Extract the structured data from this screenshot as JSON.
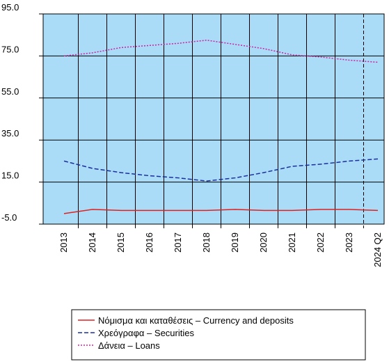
{
  "chart_data": {
    "type": "line",
    "categories": [
      "2013",
      "2014",
      "2015",
      "2016",
      "2017",
      "2018",
      "2019",
      "2020",
      "2021",
      "2022",
      "2023",
      "2024 Q2"
    ],
    "series": [
      {
        "name": "Νόμισμα και καταθέσεις – Currency and deposits",
        "color": "#e02020",
        "dash": "solid",
        "values": [
          0,
          2,
          1.5,
          1.5,
          1.5,
          1.5,
          2,
          1.5,
          1.5,
          2,
          2,
          1.5
        ]
      },
      {
        "name": "Χρεόγραφα – Securities",
        "color": "#1c2f9c",
        "dash": "dashed",
        "values": [
          25,
          21.5,
          19.5,
          18,
          17,
          15.5,
          17,
          19.5,
          22.5,
          23.5,
          25,
          26
        ]
      },
      {
        "name": "Δάνεια – Loans",
        "color": "#d020a0",
        "dash": "dotted",
        "values": [
          75,
          76.5,
          79,
          80,
          81,
          82.5,
          80.5,
          78.5,
          75.5,
          74.5,
          73,
          72
        ]
      }
    ],
    "ylim": [
      -5,
      95
    ],
    "yticks": [
      {
        "value": -5,
        "label": "-5.0"
      },
      {
        "value": 15,
        "label": "15.0"
      },
      {
        "value": 35,
        "label": "35.0"
      },
      {
        "value": 55,
        "label": "55.0"
      },
      {
        "value": 75,
        "label": "75.0"
      },
      {
        "value": 95,
        "label": "95.0"
      }
    ],
    "grid": true,
    "background": "#aadcf7",
    "legend": "bottom"
  }
}
